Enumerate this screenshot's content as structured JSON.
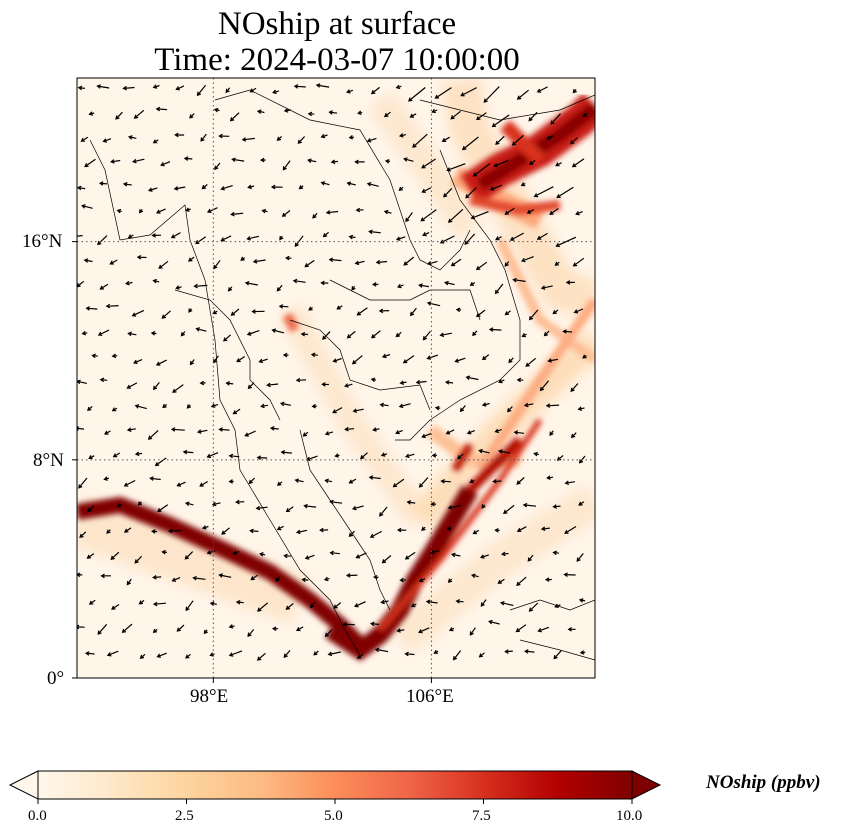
{
  "title": {
    "line1": "NOship at surface",
    "line2": "Time: 2024-03-07 10:00:00"
  },
  "map": {
    "extent": {
      "lon": [
        93,
        112
      ],
      "lat": [
        0,
        22
      ]
    },
    "lat_ticks": [
      {
        "value": 16,
        "label": "16°N"
      },
      {
        "value": 8,
        "label": "8°N"
      },
      {
        "value": 0,
        "label": "0°"
      }
    ],
    "lon_ticks": [
      {
        "value": 98,
        "label": "98°E"
      },
      {
        "value": 106,
        "label": "106°E"
      }
    ],
    "gridlines": "dotted"
  },
  "colorbar": {
    "title": "NOship (ppbv)",
    "colormap": "OrRd",
    "min": 0.0,
    "max": 10.0,
    "extend": "both",
    "colors": [
      "#fff7ec",
      "#fee8c8",
      "#fdd49e",
      "#fdbb84",
      "#fc8d59",
      "#ef6548",
      "#d7301f",
      "#b30000",
      "#7f0000"
    ],
    "ticks": [
      "0.0",
      "2.5",
      "5.0",
      "7.5",
      "10.0"
    ]
  }
}
